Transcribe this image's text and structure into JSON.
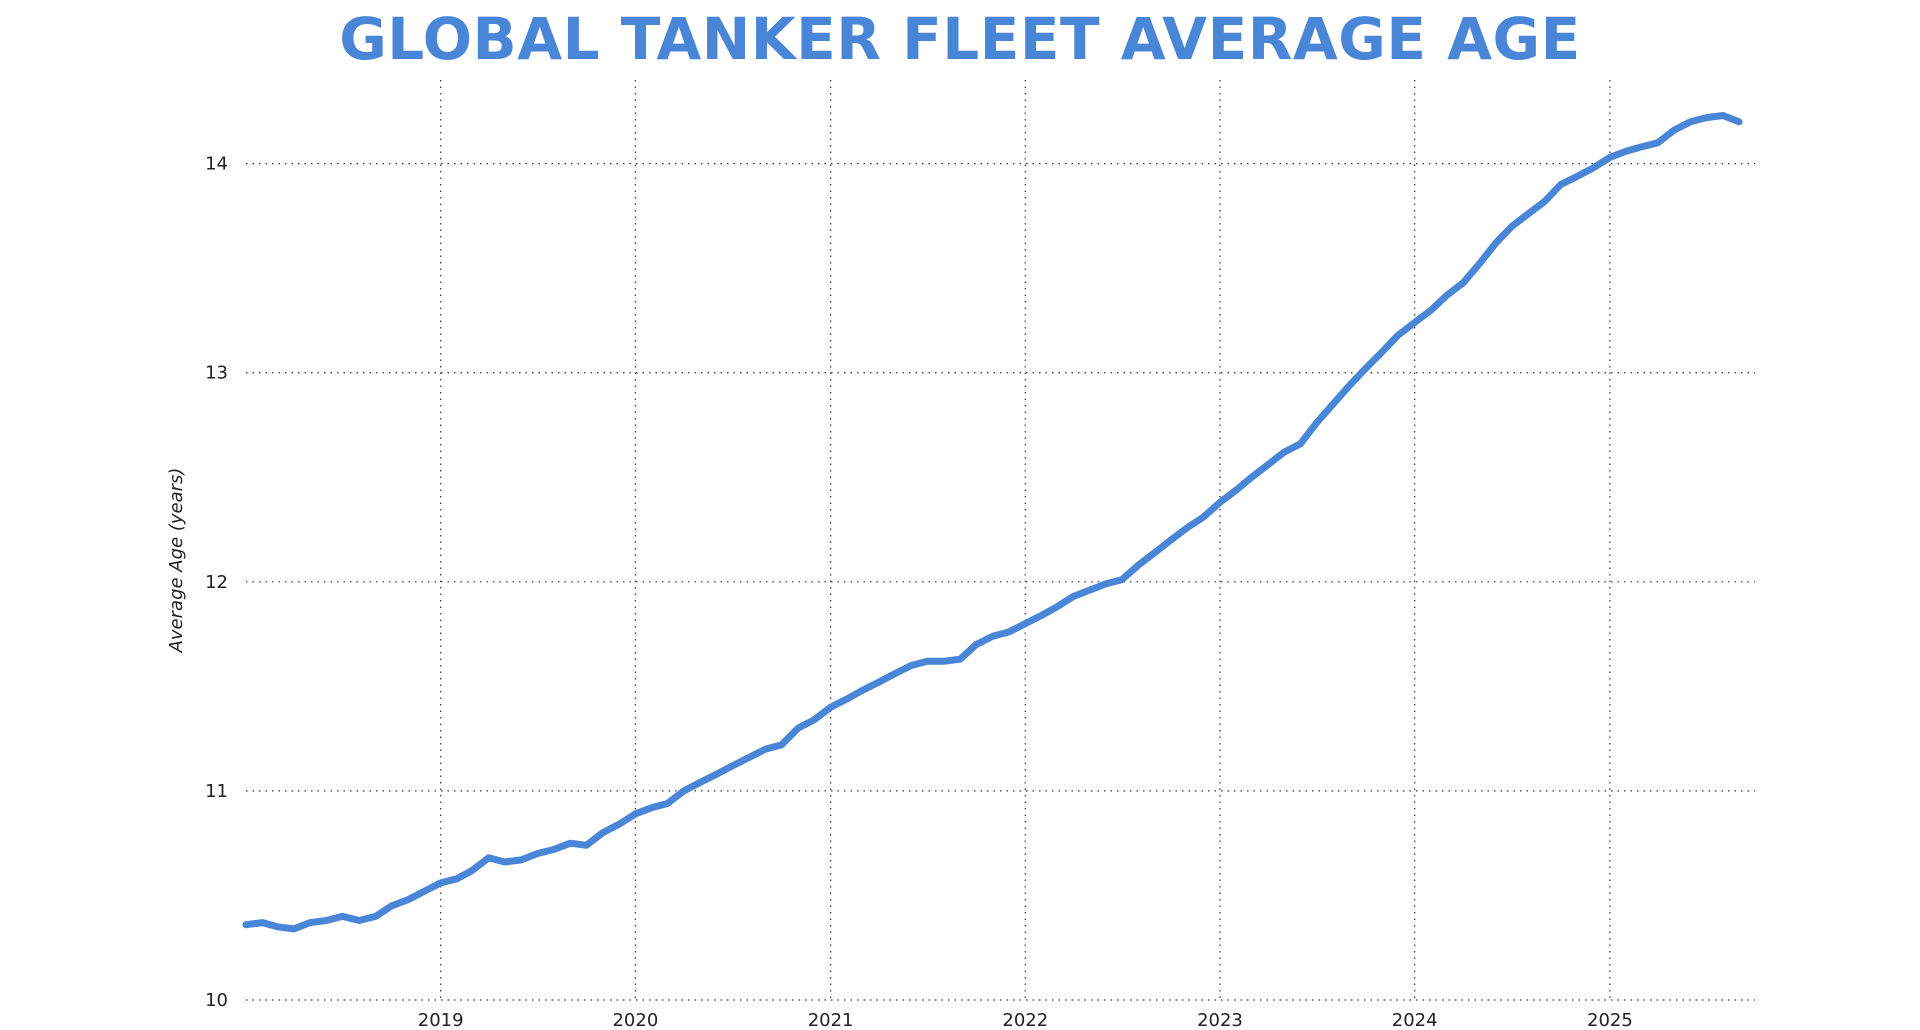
{
  "chart_data": {
    "type": "line",
    "title": "GLOBAL TANKER FLEET AVERAGE AGE",
    "xlabel": "",
    "ylabel": "Average Age (years)",
    "x_ticks": [
      "2019",
      "2020",
      "2021",
      "2022",
      "2023",
      "2024",
      "2025"
    ],
    "y_ticks": [
      "10",
      "11",
      "12",
      "13",
      "14"
    ],
    "xlim": [
      "2018-01-01",
      "2025-09-30"
    ],
    "ylim": [
      10,
      14.4
    ],
    "grid": true,
    "grid_style": "dotted",
    "line_color": "#4a86d8",
    "title_color": "#4a86d8",
    "series": [
      {
        "x": [
          "2018-01-01",
          "2018-02-01",
          "2018-03-01",
          "2018-04-01",
          "2018-05-01",
          "2018-06-01",
          "2018-07-01",
          "2018-08-01",
          "2018-09-01",
          "2018-10-01",
          "2018-11-01",
          "2018-12-01",
          "2019-01-01",
          "2019-02-01",
          "2019-03-01",
          "2019-04-01",
          "2019-05-01",
          "2019-06-01",
          "2019-07-01",
          "2019-08-01",
          "2019-09-01",
          "2019-10-01",
          "2019-11-01",
          "2019-12-01",
          "2020-01-01",
          "2020-02-01",
          "2020-03-01",
          "2020-04-01",
          "2020-05-01",
          "2020-06-01",
          "2020-07-01",
          "2020-08-01",
          "2020-09-01",
          "2020-10-01",
          "2020-11-01",
          "2020-12-01",
          "2021-01-01",
          "2021-02-01",
          "2021-03-01",
          "2021-04-01",
          "2021-05-01",
          "2021-06-01",
          "2021-07-01",
          "2021-08-01",
          "2021-09-01",
          "2021-10-01",
          "2021-11-01",
          "2021-12-01",
          "2022-01-01",
          "2022-02-01",
          "2022-03-01",
          "2022-04-01",
          "2022-05-01",
          "2022-06-01",
          "2022-07-01",
          "2022-08-01",
          "2022-09-01",
          "2022-10-01",
          "2022-11-01",
          "2022-12-01",
          "2023-01-01",
          "2023-02-01",
          "2023-03-01",
          "2023-04-01",
          "2023-05-01",
          "2023-06-01",
          "2023-07-01",
          "2023-08-01",
          "2023-09-01",
          "2023-10-01",
          "2023-11-01",
          "2023-12-01",
          "2024-01-01",
          "2024-02-01",
          "2024-03-01",
          "2024-04-01",
          "2024-05-01",
          "2024-06-01",
          "2024-07-01",
          "2024-08-01",
          "2024-09-01",
          "2024-10-01",
          "2024-11-01",
          "2024-12-01",
          "2025-01-01",
          "2025-02-01",
          "2025-03-01",
          "2025-04-01",
          "2025-05-01",
          "2025-06-01",
          "2025-07-01",
          "2025-08-01",
          "2025-08-31"
        ],
        "values": [
          10.36,
          10.37,
          10.35,
          10.34,
          10.37,
          10.38,
          10.4,
          10.38,
          10.4,
          10.45,
          10.48,
          10.52,
          10.56,
          10.58,
          10.62,
          10.68,
          10.66,
          10.67,
          10.7,
          10.72,
          10.75,
          10.74,
          10.8,
          10.84,
          10.89,
          10.92,
          10.94,
          11.0,
          11.04,
          11.08,
          11.12,
          11.16,
          11.2,
          11.22,
          11.3,
          11.34,
          11.4,
          11.44,
          11.48,
          11.52,
          11.56,
          11.6,
          11.62,
          11.62,
          11.63,
          11.7,
          11.74,
          11.76,
          11.8,
          11.84,
          11.88,
          11.93,
          11.96,
          11.99,
          12.01,
          12.08,
          12.14,
          12.2,
          12.26,
          12.31,
          12.38,
          12.44,
          12.5,
          12.56,
          12.62,
          12.66,
          12.76,
          12.85,
          12.94,
          13.02,
          13.1,
          13.18,
          13.24,
          13.3,
          13.37,
          13.43,
          13.52,
          13.62,
          13.7,
          13.76,
          13.82,
          13.9,
          13.94,
          13.98,
          14.03,
          14.06,
          14.08,
          14.1,
          14.16,
          14.2,
          14.22,
          14.23,
          14.2
        ]
      }
    ]
  }
}
